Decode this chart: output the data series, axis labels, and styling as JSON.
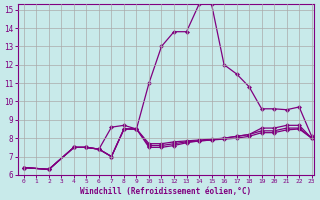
{
  "xlabel": "Windchill (Refroidissement éolien,°C)",
  "ylabel": "",
  "bg_color": "#c8eaea",
  "grid_color": "#aaaaaa",
  "line_color": "#800080",
  "xlim": [
    -0.5,
    23.2
  ],
  "ylim": [
    6,
    15.3
  ],
  "xticks": [
    0,
    1,
    2,
    3,
    4,
    5,
    6,
    7,
    8,
    9,
    10,
    11,
    12,
    13,
    14,
    15,
    16,
    17,
    18,
    19,
    20,
    21,
    22,
    23
  ],
  "yticks": [
    6,
    7,
    8,
    9,
    10,
    11,
    12,
    13,
    14,
    15
  ],
  "series": [
    {
      "x": [
        0,
        2,
        4,
        5,
        6,
        7,
        8,
        9,
        10,
        11,
        12,
        13,
        14,
        15,
        16,
        17,
        18,
        19,
        20,
        21,
        22,
        23
      ],
      "y": [
        6.4,
        6.3,
        7.5,
        7.5,
        7.4,
        8.6,
        8.7,
        8.5,
        11.0,
        13.0,
        13.8,
        13.8,
        15.3,
        15.3,
        12.0,
        11.5,
        10.8,
        9.6,
        9.6,
        9.55,
        9.7,
        8.1
      ]
    },
    {
      "x": [
        0,
        2,
        4,
        5,
        6,
        7,
        8,
        9,
        10,
        11,
        12,
        13,
        14,
        15,
        16,
        17,
        18,
        19,
        20,
        21,
        22,
        23
      ],
      "y": [
        6.4,
        6.3,
        7.5,
        7.5,
        7.4,
        7.0,
        8.5,
        8.5,
        7.7,
        7.7,
        7.8,
        7.85,
        7.9,
        7.95,
        8.0,
        8.1,
        8.2,
        8.55,
        8.55,
        8.7,
        8.7,
        8.0
      ]
    },
    {
      "x": [
        0,
        2,
        4,
        5,
        6,
        7,
        8,
        9,
        10,
        11,
        12,
        13,
        14,
        15,
        16,
        17,
        18,
        19,
        20,
        21,
        22,
        23
      ],
      "y": [
        6.4,
        6.3,
        7.5,
        7.5,
        7.4,
        7.0,
        8.5,
        8.5,
        7.6,
        7.6,
        7.7,
        7.8,
        7.85,
        7.9,
        8.0,
        8.1,
        8.2,
        8.4,
        8.4,
        8.55,
        8.55,
        8.0
      ]
    },
    {
      "x": [
        0,
        2,
        4,
        5,
        6,
        7,
        8,
        9,
        10,
        11,
        12,
        13,
        14,
        15,
        16,
        17,
        18,
        19,
        20,
        21,
        22,
        23
      ],
      "y": [
        6.4,
        6.3,
        7.5,
        7.5,
        7.4,
        7.0,
        8.5,
        8.5,
        7.5,
        7.5,
        7.6,
        7.75,
        7.85,
        7.9,
        7.95,
        8.0,
        8.1,
        8.3,
        8.3,
        8.45,
        8.5,
        8.0
      ]
    }
  ]
}
